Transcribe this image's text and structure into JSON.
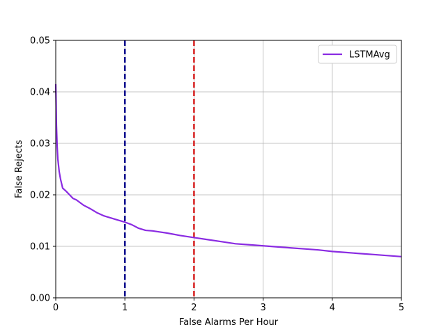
{
  "chart_data": {
    "type": "line",
    "title": "",
    "xlabel": "False Alarms Per Hour",
    "ylabel": "False Rejects",
    "xlim": [
      0,
      5
    ],
    "ylim": [
      0,
      0.05
    ],
    "x_ticks": [
      0,
      1,
      2,
      3,
      4,
      5
    ],
    "x_tick_labels": [
      "0",
      "1",
      "2",
      "3",
      "4",
      "5"
    ],
    "y_ticks": [
      0,
      0.01,
      0.02,
      0.03,
      0.04,
      0.05
    ],
    "y_tick_labels": [
      "0.00",
      "0.01",
      "0.02",
      "0.03",
      "0.04",
      "0.05"
    ],
    "grid": true,
    "legend_position": "top-right",
    "series": [
      {
        "name": "LSTMAvg",
        "color": "#8a2be2",
        "x": [
          0,
          0.005,
          0.01,
          0.02,
          0.03,
          0.05,
          0.07,
          0.1,
          0.15,
          0.2,
          0.25,
          0.3,
          0.4,
          0.5,
          0.6,
          0.7,
          0.8,
          0.9,
          1.0,
          1.1,
          1.2,
          1.3,
          1.4,
          1.5,
          1.6,
          1.8,
          2.0,
          2.2,
          2.4,
          2.6,
          2.8,
          3.0,
          3.2,
          3.4,
          3.6,
          3.8,
          4.0,
          4.2,
          4.4,
          4.6,
          4.8,
          5.0
        ],
        "y": [
          0.0415,
          0.038,
          0.0335,
          0.0295,
          0.027,
          0.0245,
          0.023,
          0.0213,
          0.0207,
          0.02,
          0.0193,
          0.019,
          0.018,
          0.0173,
          0.0165,
          0.0159,
          0.0155,
          0.0151,
          0.0147,
          0.0142,
          0.0135,
          0.0131,
          0.013,
          0.0128,
          0.0126,
          0.0121,
          0.0117,
          0.0113,
          0.0109,
          0.0105,
          0.0103,
          0.0101,
          0.0099,
          0.0097,
          0.0095,
          0.0093,
          0.009,
          0.0088,
          0.0086,
          0.0084,
          0.0082,
          0.008
        ]
      }
    ],
    "vlines": [
      {
        "x": 1,
        "color": "#00008b",
        "style": "dashed"
      },
      {
        "x": 2,
        "color": "#d62020",
        "style": "dashed"
      }
    ]
  }
}
